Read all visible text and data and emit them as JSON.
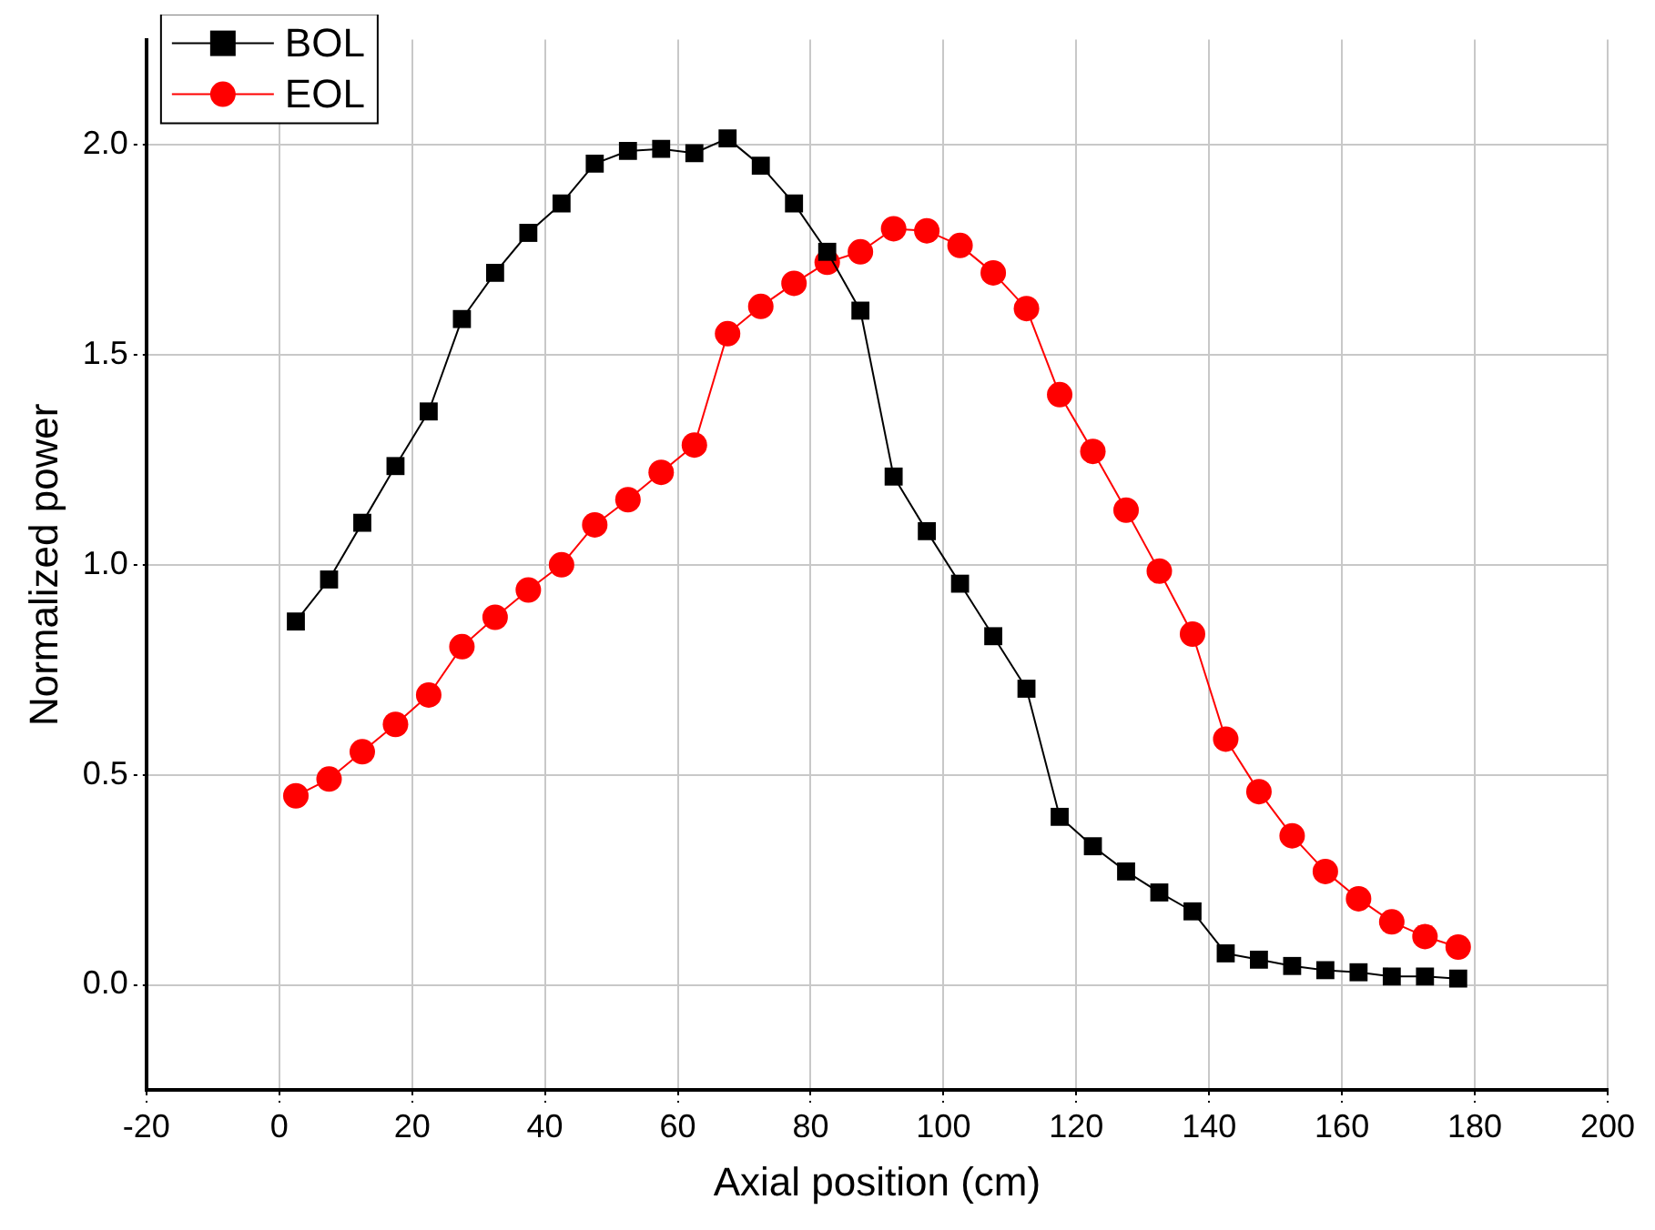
{
  "chart_data": {
    "type": "line",
    "xlabel": "Axial position (cm)",
    "ylabel": "Normalized power",
    "x": [
      2.5,
      7.5,
      12.5,
      17.5,
      22.5,
      27.5,
      32.5,
      37.5,
      42.5,
      47.5,
      52.5,
      57.5,
      62.5,
      67.5,
      72.5,
      77.5,
      82.5,
      87.5,
      92.5,
      97.5,
      102.5,
      107.5,
      112.5,
      117.5,
      122.5,
      127.5,
      132.5,
      137.5,
      142.5,
      147.5,
      152.5,
      157.5,
      162.5,
      167.5,
      172.5,
      177.5
    ],
    "series": [
      {
        "name": "BOL",
        "color": "#000000",
        "marker": "square",
        "values": [
          0.865,
          0.965,
          1.1,
          1.235,
          1.365,
          1.585,
          1.695,
          1.79,
          1.86,
          1.955,
          1.985,
          1.99,
          1.98,
          2.015,
          1.95,
          1.86,
          1.745,
          1.605,
          1.21,
          1.08,
          0.955,
          0.83,
          0.705,
          0.4,
          0.33,
          0.27,
          0.22,
          0.175,
          0.075,
          0.06,
          0.045,
          0.035,
          0.03,
          0.02,
          0.02,
          0.015
        ]
      },
      {
        "name": "EOL",
        "color": "#ff0000",
        "marker": "circle",
        "values": [
          0.45,
          0.49,
          0.555,
          0.62,
          0.69,
          0.805,
          0.875,
          0.94,
          1.0,
          1.095,
          1.155,
          1.22,
          1.285,
          1.55,
          1.615,
          1.67,
          1.72,
          1.745,
          1.8,
          1.795,
          1.76,
          1.695,
          1.61,
          1.405,
          1.27,
          1.13,
          0.985,
          0.835,
          0.585,
          0.46,
          0.355,
          0.27,
          0.205,
          0.15,
          0.115,
          0.09
        ]
      }
    ],
    "xlim": [
      -20,
      200
    ],
    "xticks": [
      -20,
      0,
      20,
      40,
      60,
      80,
      100,
      120,
      140,
      160,
      180,
      200
    ],
    "ylim": [
      -0.25,
      2.25
    ],
    "yticks": [
      {
        "value": 0,
        "label": "0.0"
      },
      0.5,
      {
        "value": 1,
        "label": "1.0"
      },
      1.5,
      {
        "value": 2,
        "label": "2.0"
      }
    ],
    "grid": true,
    "legend": "top left",
    "line_style": "solid"
  }
}
